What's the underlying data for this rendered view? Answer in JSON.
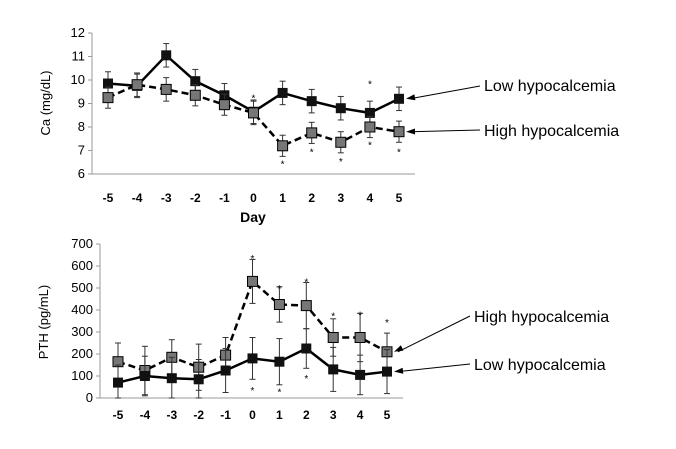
{
  "chart_data": [
    {
      "type": "line",
      "xlabel": "Day",
      "ylabel": "Ca (mg/dL)",
      "ylim": [
        6,
        12
      ],
      "yticks": [
        6,
        7,
        8,
        9,
        10,
        11,
        12
      ],
      "categories": [
        "-5",
        "-4",
        "-3",
        "-2",
        "-1",
        "0",
        "1",
        "2",
        "3",
        "4",
        "5"
      ],
      "series": [
        {
          "name": "Low hypocalcemia",
          "style": "solid",
          "color": "#111111",
          "values": [
            9.85,
            9.75,
            11.05,
            9.95,
            9.35,
            8.65,
            9.45,
            9.1,
            8.8,
            8.6,
            9.2
          ],
          "error": [
            0.5,
            0.5,
            0.5,
            0.5,
            0.5,
            0.5,
            0.5,
            0.5,
            0.5,
            0.5,
            0.5
          ]
        },
        {
          "name": "High hypocalcemia",
          "style": "dashed",
          "color": "#777777",
          "values": [
            9.25,
            9.8,
            9.6,
            9.35,
            8.95,
            8.6,
            7.2,
            7.75,
            7.35,
            8.0,
            7.8
          ],
          "error": [
            0.45,
            0.5,
            0.5,
            0.45,
            0.45,
            0.5,
            0.45,
            0.45,
            0.45,
            0.45,
            0.45
          ]
        }
      ],
      "significance_markers": [
        {
          "day": "0",
          "value": 9.3
        },
        {
          "day": "1",
          "value": 6.5
        },
        {
          "day": "2",
          "value": 7.0
        },
        {
          "day": "3",
          "value": 6.6
        },
        {
          "day": "4",
          "value": 9.9
        },
        {
          "day": "4",
          "value": 7.3
        },
        {
          "day": "5",
          "value": 7.0
        }
      ],
      "marker_symbol": "*"
    },
    {
      "type": "line",
      "xlabel": "",
      "ylabel": "PTH (pg/mL)",
      "ylim": [
        0,
        700
      ],
      "yticks": [
        0,
        100,
        200,
        300,
        400,
        500,
        600,
        700
      ],
      "categories": [
        "-5",
        "-4",
        "-3",
        "-2",
        "-1",
        "0",
        "1",
        "2",
        "3",
        "4",
        "5"
      ],
      "series": [
        {
          "name": "High hypocalcemia",
          "style": "dashed",
          "color": "#777777",
          "values": [
            165,
            125,
            185,
            140,
            195,
            530,
            425,
            420,
            275,
            275,
            210
          ],
          "error": [
            85,
            110,
            80,
            105,
            80,
            100,
            80,
            105,
            85,
            110,
            85
          ]
        },
        {
          "name": "Low hypocalcemia",
          "style": "solid",
          "color": "#111111",
          "values": [
            70,
            100,
            90,
            85,
            125,
            180,
            165,
            225,
            130,
            105,
            120
          ],
          "error": [
            80,
            90,
            95,
            90,
            100,
            95,
            105,
            90,
            100,
            90,
            100
          ]
        }
      ],
      "significance_markers": [
        {
          "day": "0",
          "value": 640
        },
        {
          "day": "1",
          "value": 505
        },
        {
          "day": "2",
          "value": 535
        },
        {
          "day": "3",
          "value": 380
        },
        {
          "day": "4",
          "value": 385
        },
        {
          "day": "5",
          "value": 350
        },
        {
          "day": "0",
          "value": 40
        },
        {
          "day": "1",
          "value": 35
        },
        {
          "day": "2",
          "value": 95
        }
      ],
      "marker_symbol": "*"
    }
  ]
}
